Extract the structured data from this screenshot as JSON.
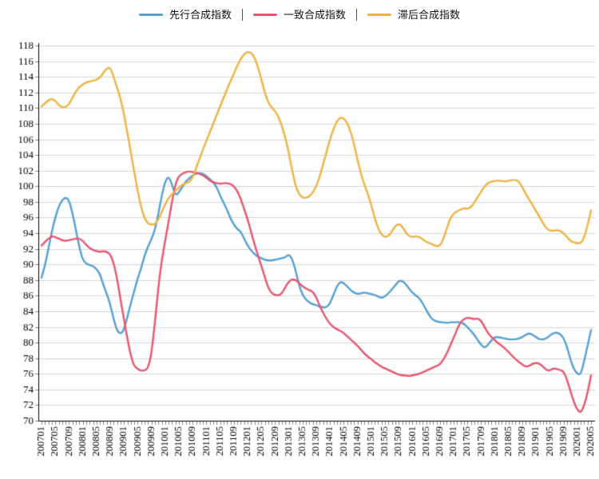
{
  "chart_data": {
    "type": "line",
    "title": "",
    "xlabel": "",
    "ylabel": "",
    "ylim": [
      70,
      118
    ],
    "ytick_step": 2,
    "grid": true,
    "legend_position": "top-center",
    "x_label_every": 4,
    "x_tick_labels": [
      "200701",
      "200705",
      "200709",
      "200801",
      "200805",
      "200809",
      "200901",
      "200905",
      "200909",
      "201001",
      "201005",
      "201009",
      "201101",
      "201105",
      "201109",
      "201201",
      "201205",
      "201209",
      "201301",
      "201305",
      "201309",
      "201401",
      "201405",
      "201409",
      "201501",
      "201505",
      "201509",
      "201601",
      "201605",
      "201609",
      "201701",
      "201705",
      "201709",
      "201801",
      "201805",
      "201809",
      "201901",
      "201905",
      "201909",
      "202001",
      "202005"
    ],
    "months_count": 161,
    "axis_color": "#000000",
    "gridline_color": "#d4d4d4",
    "tick_color": "#888888",
    "series": [
      {
        "name": "先行合成指数",
        "color": "#55a0d2",
        "values": [
          88.3,
          89.8,
          92.0,
          94.2,
          96.0,
          97.4,
          98.2,
          98.6,
          98.2,
          96.6,
          94.4,
          92.2,
          90.6,
          90.1,
          89.9,
          89.8,
          89.4,
          88.8,
          87.4,
          86.2,
          84.9,
          83.0,
          81.5,
          81.1,
          81.6,
          83.3,
          85.0,
          86.6,
          88.2,
          89.5,
          91.1,
          92.3,
          93.2,
          94.4,
          96.4,
          98.8,
          100.6,
          101.3,
          100.2,
          98.8,
          99.2,
          99.9,
          100.6,
          101.0,
          101.4,
          101.6,
          101.7,
          101.6,
          101.3,
          100.9,
          100.5,
          99.9,
          98.8,
          97.9,
          97.0,
          95.9,
          95.1,
          94.5,
          94.2,
          93.3,
          92.4,
          91.8,
          91.3,
          91.0,
          90.8,
          90.6,
          90.5,
          90.5,
          90.6,
          90.7,
          90.8,
          90.9,
          91.3,
          90.7,
          89.2,
          87.3,
          86.1,
          85.5,
          85.1,
          84.9,
          84.8,
          84.6,
          84.5,
          84.5,
          85.0,
          86.1,
          87.2,
          87.8,
          87.6,
          87.2,
          86.7,
          86.4,
          86.2,
          86.3,
          86.4,
          86.3,
          86.2,
          86.1,
          85.9,
          85.7,
          85.9,
          86.3,
          86.8,
          87.3,
          87.9,
          87.9,
          87.5,
          86.9,
          86.4,
          86.0,
          85.7,
          85.0,
          84.2,
          83.4,
          82.9,
          82.7,
          82.6,
          82.6,
          82.5,
          82.6,
          82.6,
          82.6,
          82.6,
          82.4,
          82.0,
          81.5,
          81.0,
          80.3,
          79.7,
          79.3,
          79.7,
          80.3,
          80.7,
          80.7,
          80.6,
          80.5,
          80.4,
          80.4,
          80.4,
          80.5,
          80.7,
          81.0,
          81.2,
          81.0,
          80.7,
          80.4,
          80.4,
          80.5,
          80.9,
          81.2,
          81.3,
          81.1,
          80.6,
          79.5,
          77.8,
          76.6,
          76.0,
          75.9,
          77.6,
          79.6,
          81.6
        ]
      },
      {
        "name": "一致合成指数",
        "color": "#e85570",
        "values": [
          92.4,
          92.9,
          93.3,
          93.6,
          93.5,
          93.3,
          93.1,
          93.0,
          93.1,
          93.2,
          93.3,
          93.3,
          93.0,
          92.5,
          92.1,
          91.8,
          91.7,
          91.6,
          91.7,
          91.6,
          91.3,
          90.2,
          88.2,
          85.5,
          83.0,
          80.5,
          78.3,
          77.0,
          76.6,
          76.4,
          76.4,
          76.7,
          78.5,
          82.5,
          87.0,
          90.5,
          93.0,
          95.5,
          98.0,
          100.3,
          101.3,
          101.6,
          101.8,
          101.9,
          101.8,
          101.7,
          101.6,
          101.4,
          101.1,
          100.7,
          100.5,
          100.4,
          100.3,
          100.4,
          100.4,
          100.3,
          100.0,
          99.4,
          98.4,
          97.1,
          95.8,
          94.2,
          92.6,
          91.2,
          89.8,
          88.4,
          87.0,
          86.3,
          86.1,
          86.0,
          86.3,
          87.1,
          87.8,
          88.1,
          88.0,
          87.6,
          87.2,
          86.9,
          86.7,
          86.5,
          85.8,
          84.7,
          83.8,
          83.0,
          82.4,
          82.0,
          81.7,
          81.5,
          81.2,
          80.8,
          80.4,
          80.0,
          79.6,
          79.1,
          78.6,
          78.2,
          77.9,
          77.5,
          77.2,
          76.9,
          76.7,
          76.5,
          76.3,
          76.1,
          75.9,
          75.8,
          75.8,
          75.7,
          75.8,
          75.9,
          76.0,
          76.2,
          76.4,
          76.6,
          76.8,
          77.0,
          77.2,
          77.8,
          78.6,
          79.6,
          80.6,
          81.7,
          82.6,
          83.0,
          83.2,
          83.1,
          83.0,
          83.1,
          82.8,
          82.0,
          81.2,
          80.7,
          80.3,
          79.9,
          79.6,
          79.2,
          78.8,
          78.3,
          77.9,
          77.5,
          77.2,
          76.9,
          77.0,
          77.3,
          77.4,
          77.3,
          76.9,
          76.5,
          76.4,
          76.7,
          76.6,
          76.5,
          76.3,
          75.3,
          73.8,
          72.4,
          71.4,
          71.0,
          71.9,
          73.6,
          75.8
        ]
      },
      {
        "name": "滞后合成指数",
        "color": "#eeb344",
        "values": [
          110.2,
          110.6,
          111.0,
          111.2,
          110.9,
          110.4,
          110.1,
          110.1,
          110.5,
          111.3,
          112.1,
          112.7,
          113.0,
          113.3,
          113.4,
          113.5,
          113.6,
          113.9,
          114.5,
          115.1,
          115.2,
          114.0,
          112.6,
          111.2,
          109.3,
          106.8,
          104.4,
          101.8,
          99.4,
          97.3,
          95.9,
          95.2,
          95.1,
          95.1,
          95.7,
          96.7,
          97.7,
          98.5,
          99.0,
          99.4,
          99.8,
          100.2,
          100.4,
          100.5,
          101.1,
          102.3,
          103.5,
          104.7,
          105.8,
          106.9,
          108.0,
          109.1,
          110.2,
          111.3,
          112.4,
          113.4,
          114.4,
          115.4,
          116.3,
          116.9,
          117.2,
          117.1,
          116.5,
          115.3,
          113.7,
          112.0,
          110.7,
          110.1,
          109.6,
          108.9,
          107.7,
          106.2,
          104.3,
          102.0,
          100.0,
          99.0,
          98.5,
          98.5,
          98.7,
          99.2,
          100.0,
          101.2,
          102.8,
          104.4,
          106.0,
          107.3,
          108.3,
          108.8,
          108.7,
          108.1,
          107.0,
          105.4,
          103.4,
          101.6,
          100.2,
          99.0,
          97.6,
          96.0,
          94.6,
          93.8,
          93.5,
          93.6,
          94.2,
          94.9,
          95.2,
          94.9,
          94.1,
          93.6,
          93.5,
          93.6,
          93.5,
          93.2,
          92.9,
          92.7,
          92.5,
          92.3,
          92.4,
          93.2,
          94.6,
          95.9,
          96.5,
          96.8,
          97.0,
          97.2,
          97.1,
          97.3,
          97.9,
          98.6,
          99.3,
          100.0,
          100.4,
          100.6,
          100.7,
          100.7,
          100.7,
          100.6,
          100.7,
          100.8,
          100.8,
          100.6,
          99.9,
          99.0,
          98.3,
          97.6,
          96.8,
          96.1,
          95.3,
          94.6,
          94.3,
          94.3,
          94.4,
          94.3,
          94.0,
          93.5,
          93.0,
          92.8,
          92.7,
          92.7,
          93.4,
          95.0,
          96.9
        ]
      }
    ]
  }
}
